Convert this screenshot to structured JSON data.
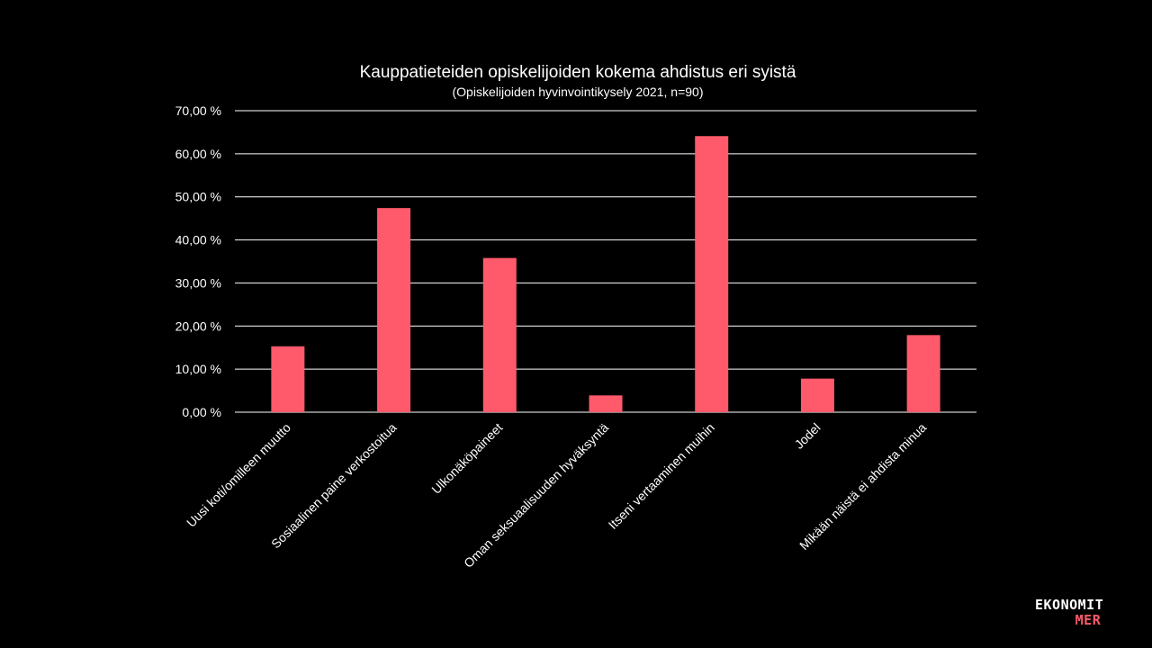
{
  "chart_data": {
    "type": "bar",
    "title": "Kauppatieteiden opiskelijoiden kokema ahdistus eri syistä",
    "subtitle": "(Opiskelijoiden hyvinvointikysely  2021, n=90)",
    "categories": [
      "Uusi koti/omilleen muutto",
      "Sosiaalinen paine verkostoitua",
      "Ulkonäköpaineet",
      "Oman seksuaalisuuden hyväksyntä",
      "Itseni vertaaminen muihin",
      "Jodel",
      "Mikään näistä ei ahdista minua"
    ],
    "values": [
      15.3,
      47.4,
      35.8,
      3.9,
      64.1,
      7.8,
      17.9
    ],
    "ylim": [
      0,
      70
    ],
    "yticks": [
      "0,00 %",
      "10,00 %",
      "20,00 %",
      "30,00 %",
      "40,00 %",
      "50,00 %",
      "60,00 %",
      "70,00 %"
    ],
    "ytick_values": [
      0,
      10,
      20,
      30,
      40,
      50,
      60,
      70
    ],
    "grid": true,
    "bar_color": "#ff5a6b",
    "grid_color": "#ffffff"
  },
  "logo": {
    "line1": "EKONOMIT",
    "line2": "MER",
    "accent": "#ff5a6b"
  }
}
